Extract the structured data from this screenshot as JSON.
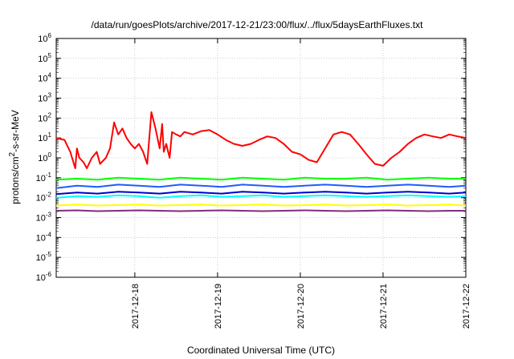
{
  "chart_data": {
    "type": "line",
    "title": "/data/run/goesPlots/archive/2017-12-21/23:00/flux/../flux/5daysEarthFluxes.txt",
    "xlabel": "Coordinated Universal Time (UTC)",
    "ylabel_base": "protons/cm",
    "ylabel_sup": "2",
    "ylabel_rest": "-s-sr-MeV",
    "yscale": "log",
    "ylim": [
      1e-06,
      1000000.0
    ],
    "y_ticks": [
      {
        "exp": "-6"
      },
      {
        "exp": "-5"
      },
      {
        "exp": "-4"
      },
      {
        "exp": "-3"
      },
      {
        "exp": "-2"
      },
      {
        "exp": "-1"
      },
      {
        "exp": "0"
      },
      {
        "exp": "1"
      },
      {
        "exp": "2"
      },
      {
        "exp": "3"
      },
      {
        "exp": "4"
      },
      {
        "exp": "5"
      },
      {
        "exp": "6"
      }
    ],
    "x_ticks": [
      "2017-12-18",
      "2017-12-19",
      "2017-12-20",
      "2017-12-21",
      "2017-12-22"
    ],
    "xlim_days": [
      -0.95,
      4.0
    ],
    "grid": true,
    "series": [
      {
        "color": "#ff0000",
        "x_days": [
          -0.95,
          -0.85,
          -0.78,
          -0.72,
          -0.7,
          -0.67,
          -0.62,
          -0.58,
          -0.52,
          -0.46,
          -0.42,
          -0.35,
          -0.3,
          -0.25,
          -0.2,
          -0.15,
          -0.1,
          -0.05,
          0.0,
          0.05,
          0.1,
          0.15,
          0.2,
          0.25,
          0.3,
          0.33,
          0.35,
          0.38,
          0.42,
          0.45,
          0.5,
          0.55,
          0.6,
          0.7,
          0.8,
          0.9,
          1.0,
          1.1,
          1.2,
          1.3,
          1.4,
          1.5,
          1.6,
          1.7,
          1.8,
          1.9,
          2.0,
          2.1,
          2.2,
          2.3,
          2.4,
          2.5,
          2.6,
          2.7,
          2.8,
          2.9,
          3.0,
          3.1,
          3.2,
          3.3,
          3.4,
          3.5,
          3.6,
          3.7,
          3.8,
          3.9,
          4.0
        ],
        "y": [
          10,
          8,
          2,
          0.3,
          3,
          1,
          0.6,
          0.3,
          1,
          2,
          0.5,
          1,
          3,
          60,
          15,
          30,
          10,
          5,
          3,
          5,
          2,
          0.5,
          200,
          30,
          3,
          50,
          2,
          5,
          1,
          20,
          15,
          12,
          20,
          15,
          22,
          25,
          15,
          8,
          5,
          4,
          5,
          8,
          12,
          10,
          5,
          2,
          1.5,
          0.8,
          0.6,
          3,
          15,
          20,
          15,
          5,
          1.5,
          0.5,
          0.4,
          1,
          2,
          5,
          10,
          15,
          12,
          10,
          15,
          12,
          10
        ]
      },
      {
        "color": "#00ff00",
        "x_days": [
          -0.95,
          -0.7,
          -0.45,
          -0.2,
          0.05,
          0.3,
          0.55,
          0.8,
          1.05,
          1.3,
          1.55,
          1.8,
          2.05,
          2.3,
          2.55,
          2.8,
          3.05,
          3.3,
          3.55,
          3.8,
          4.0
        ],
        "y": [
          0.08,
          0.09,
          0.08,
          0.1,
          0.09,
          0.08,
          0.1,
          0.09,
          0.08,
          0.1,
          0.09,
          0.08,
          0.1,
          0.09,
          0.09,
          0.1,
          0.08,
          0.09,
          0.1,
          0.09,
          0.09
        ]
      },
      {
        "color": "#00ffff",
        "x_days": [
          -0.95,
          -0.7,
          -0.45,
          -0.2,
          0.05,
          0.3,
          0.55,
          0.8,
          1.05,
          1.3,
          1.55,
          1.8,
          2.05,
          2.3,
          2.55,
          2.8,
          3.05,
          3.3,
          3.55,
          3.8,
          4.0
        ],
        "y": [
          0.01,
          0.012,
          0.011,
          0.013,
          0.012,
          0.01,
          0.012,
          0.013,
          0.011,
          0.012,
          0.013,
          0.011,
          0.012,
          0.013,
          0.012,
          0.011,
          0.012,
          0.013,
          0.012,
          0.011,
          0.012
        ]
      },
      {
        "color": "#1f5bff",
        "x_days": [
          -0.95,
          -0.7,
          -0.45,
          -0.2,
          0.05,
          0.3,
          0.55,
          0.8,
          1.05,
          1.3,
          1.55,
          1.8,
          2.05,
          2.3,
          2.55,
          2.8,
          3.05,
          3.3,
          3.55,
          3.8,
          4.0
        ],
        "y": [
          0.03,
          0.04,
          0.035,
          0.045,
          0.04,
          0.035,
          0.045,
          0.04,
          0.035,
          0.045,
          0.04,
          0.035,
          0.04,
          0.045,
          0.04,
          0.035,
          0.04,
          0.045,
          0.04,
          0.035,
          0.04
        ]
      },
      {
        "color": "#0000cc",
        "x_days": [
          -0.95,
          -0.7,
          -0.45,
          -0.2,
          0.05,
          0.3,
          0.55,
          0.8,
          1.05,
          1.3,
          1.55,
          1.8,
          2.05,
          2.3,
          2.55,
          2.8,
          3.05,
          3.3,
          3.55,
          3.8,
          4.0
        ],
        "y": [
          0.015,
          0.018,
          0.016,
          0.02,
          0.018,
          0.016,
          0.02,
          0.018,
          0.016,
          0.02,
          0.018,
          0.016,
          0.018,
          0.02,
          0.018,
          0.016,
          0.018,
          0.02,
          0.018,
          0.016,
          0.018
        ]
      },
      {
        "color": "#ffff00",
        "x_days": [
          -0.95,
          -0.7,
          -0.45,
          -0.2,
          0.05,
          0.3,
          0.55,
          0.8,
          1.05,
          1.3,
          1.55,
          1.8,
          2.05,
          2.3,
          2.55,
          2.8,
          3.05,
          3.3,
          3.55,
          3.8,
          4.0
        ],
        "y": [
          0.004,
          0.0045,
          0.004,
          0.0042,
          0.0045,
          0.004,
          0.0042,
          0.0045,
          0.004,
          0.0042,
          0.0045,
          0.004,
          0.0042,
          0.0045,
          0.004,
          0.0042,
          0.0045,
          0.004,
          0.0042,
          0.0045,
          0.004
        ]
      },
      {
        "color": "#7f2f7f",
        "x_days": [
          -0.95,
          -0.7,
          -0.45,
          -0.2,
          0.05,
          0.3,
          0.55,
          0.8,
          1.05,
          1.3,
          1.55,
          1.8,
          2.05,
          2.3,
          2.55,
          2.8,
          3.05,
          3.3,
          3.55,
          3.8,
          4.0
        ],
        "y": [
          0.0022,
          0.0023,
          0.0021,
          0.0022,
          0.0023,
          0.0022,
          0.0021,
          0.0022,
          0.0023,
          0.0022,
          0.0021,
          0.0022,
          0.0023,
          0.0022,
          0.0021,
          0.0022,
          0.0023,
          0.0022,
          0.0021,
          0.0022,
          0.0022
        ]
      }
    ]
  }
}
